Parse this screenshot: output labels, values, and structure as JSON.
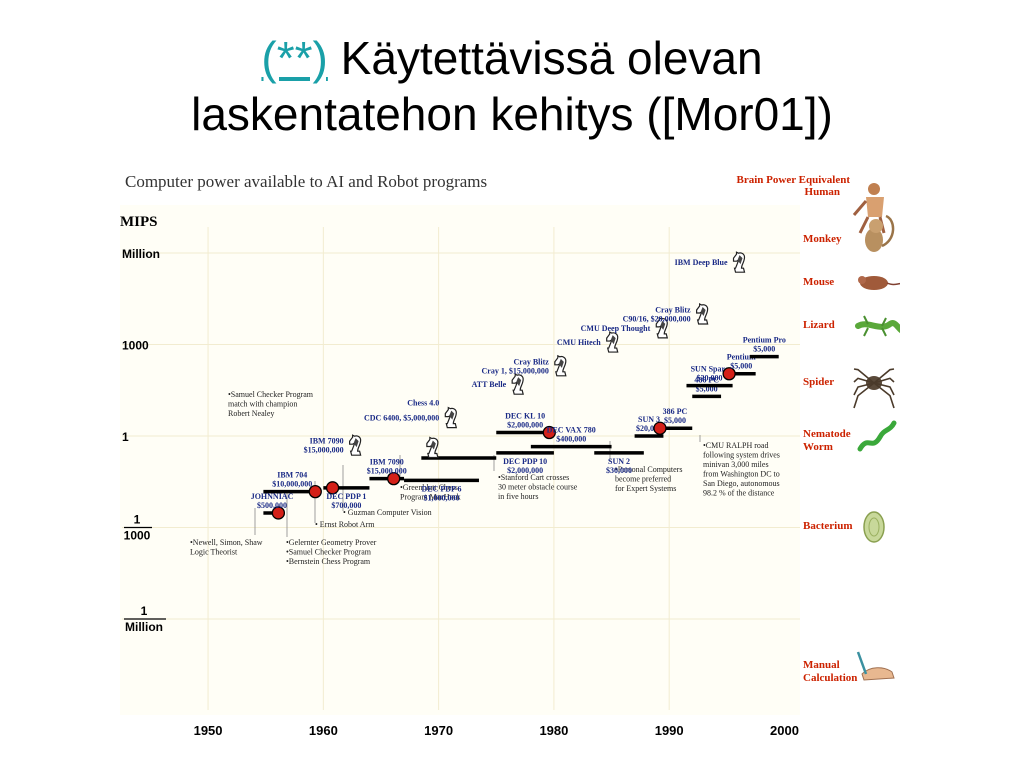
{
  "slide": {
    "link_text": "(**)",
    "title_line1": "Käytettävissä olevan",
    "title_line2": "laskentatehon kehitys ([Mor01])"
  },
  "chart_data": {
    "type": "scatter",
    "title": "Computer power available to AI and Robot programs",
    "ylabel": "MIPS",
    "x_ticks": [
      1950,
      1960,
      1970,
      1980,
      1990,
      2000
    ],
    "xlim": [
      1948,
      2001
    ],
    "y_scale": "log",
    "y_ticks": [
      {
        "label": "Million",
        "value": 1000000
      },
      {
        "label": "1000",
        "value": 1000
      },
      {
        "label": "1",
        "value": 1
      },
      {
        "num": "1",
        "den": "1000",
        "value": 0.001
      },
      {
        "num": "1",
        "den": "Million",
        "value": 1e-06
      }
    ],
    "grid": true,
    "machines": [
      {
        "label": [
          "JOHNNIAC",
          "$500,000"
        ],
        "x0": 1954.8,
        "x1": 1956.3,
        "y": 0.003,
        "dot": 1956.1
      },
      {
        "label": [
          "IBM 704",
          "$10,000,000"
        ],
        "x0": 1954.8,
        "x1": 1959.8,
        "y": 0.015,
        "dot": 1959.3
      },
      {
        "label": [
          "DEC PDP 1",
          "$700,000"
        ],
        "x0": 1960,
        "x1": 1964,
        "y": 0.02,
        "dot": 1960.8
      },
      {
        "label": [
          "IBM 7090",
          "$15,000,000"
        ],
        "x0": 1964,
        "x1": 1967,
        "y": 0.04,
        "dot": 1966.1
      },
      {
        "label": [
          "DEC PDP 6",
          "$1,000,000"
        ],
        "x0": 1967,
        "x1": 1973.5,
        "y": 0.035
      },
      {
        "label": [
          "CDC 6400, $5,000,000"
        ],
        "x0": 1968.5,
        "x1": 1975,
        "y": 0.19
      },
      {
        "label": [
          "DEC KL 10",
          "$2,000,000"
        ],
        "x0": 1975,
        "x1": 1980,
        "y": 1.3,
        "dot": 1979.6
      },
      {
        "label": [
          "DEC PDP 10",
          "$2,000,000"
        ],
        "x0": 1975,
        "x1": 1980,
        "y": 0.28
      },
      {
        "label": [
          "DEC VAX 780",
          "$400,000"
        ],
        "x0": 1978,
        "x1": 1985,
        "y": 0.45
      },
      {
        "label": [
          "SUN 2",
          "$30,000"
        ],
        "x0": 1983.5,
        "x1": 1987.8,
        "y": 0.28
      },
      {
        "label": [
          "SUN 3",
          "$20,000"
        ],
        "x0": 1987,
        "x1": 1989.5,
        "y": 1.0
      },
      {
        "label": [
          "386 PC",
          "$5,000"
        ],
        "x0": 1989,
        "x1": 1992,
        "y": 1.8,
        "dot": 1989.2
      },
      {
        "label": [
          "486 PC",
          "$5,000"
        ],
        "x0": 1992,
        "x1": 1994.5,
        "y": 20
      },
      {
        "label": [
          "SUN Sparc",
          "$20,000"
        ],
        "x0": 1991.5,
        "x1": 1995.5,
        "y": 45
      },
      {
        "label": [
          "Pentium",
          "$5,000"
        ],
        "x0": 1995,
        "x1": 1997.5,
        "y": 110,
        "dot": 1995.2
      },
      {
        "label": [
          "Pentium Pro",
          "$5,000"
        ],
        "x0": 1997,
        "x1": 1999.5,
        "y": 400
      }
    ],
    "chess": [
      {
        "label": [
          "CDC 6400, $5,000,000"
        ],
        "x": 1971.1,
        "y": 4,
        "label_side": "left"
      },
      {
        "label": [
          "Chess 4.0"
        ],
        "x": 1971.1,
        "y": 4
      },
      {
        "label": [
          "IBM 7090",
          "$15,000,000"
        ],
        "x": 1962.8,
        "y": 0.5,
        "label_side": "left"
      },
      {
        "label": [
          "DEC PDP 6 (chess)"
        ],
        "x": 1969.5,
        "y": 0.42
      },
      {
        "label": [
          "ATT Belle"
        ],
        "x": 1976.9,
        "y": 50
      },
      {
        "label": [
          "Cray Blitz",
          "Cray 1, $15,000,000"
        ],
        "x": 1980.6,
        "y": 200,
        "label_side": "left"
      },
      {
        "label": [
          "CMU Hitech"
        ],
        "x": 1985.1,
        "y": 1200
      },
      {
        "label": [
          "CMU Deep Thought"
        ],
        "x": 1989.4,
        "y": 3500
      },
      {
        "label": [
          "Cray Blitz",
          "C90/16, $20,000,000"
        ],
        "x": 1992.9,
        "y": 10000
      },
      {
        "label": [
          "IBM Deep Blue"
        ],
        "x": 1996.1,
        "y": 500000
      }
    ],
    "annotations": [
      {
        "lines": [
          "•Samuel Checker Program",
          "match with champion",
          "Robert Nealey"
        ]
      },
      {
        "lines": [
          "•Newell, Simon, Shaw",
          "Logic Theorist"
        ]
      },
      {
        "lines": [
          "•Gelernter Geometry Prover",
          "•Samuel Checker Program",
          "•Bernstein Chess Program"
        ]
      },
      {
        "lines": [
          "• Ernst Robot Arm"
        ]
      },
      {
        "lines": [
          "• Guzman Computer Vision"
        ]
      },
      {
        "lines": [
          "•Greenblatt  Chess",
          "Program MacHack"
        ]
      },
      {
        "lines": [
          "•Stanford Cart crosses",
          "30 meter obstacle course",
          "in five hours"
        ]
      },
      {
        "lines": [
          "•Personal Computers",
          "become preferred",
          "for Expert Systems"
        ]
      },
      {
        "lines": [
          "•CMU RALPH road",
          "following system drives",
          "minivan 3,000 miles",
          "from Washington DC to",
          "San Diego, autonomous",
          "98.2 % of the distance"
        ]
      }
    ],
    "brain_equivalent": {
      "title": "Brain Power Equivalent",
      "subtitle": "Human",
      "items": [
        {
          "name": "Monkey",
          "y": 600000
        },
        {
          "name": "Mouse",
          "y": 10000
        },
        {
          "name": "Lizard",
          "y": 1800
        },
        {
          "name": "Spider",
          "y": 150
        },
        {
          "name": "Nematode Worm",
          "y": 4
        },
        {
          "name": "Bacterium",
          "y": 0.0018
        },
        {
          "name": "Manual Calculation",
          "y": 2.5e-09
        }
      ]
    }
  },
  "colors": {
    "link": "#1aa0a8",
    "label_blue": "#1a2a86",
    "brain_red": "#cc2200",
    "dot_red": "#d42018",
    "bar": "#000000",
    "grid": "#f2ecd0",
    "chart_bg": "#fffef6"
  }
}
